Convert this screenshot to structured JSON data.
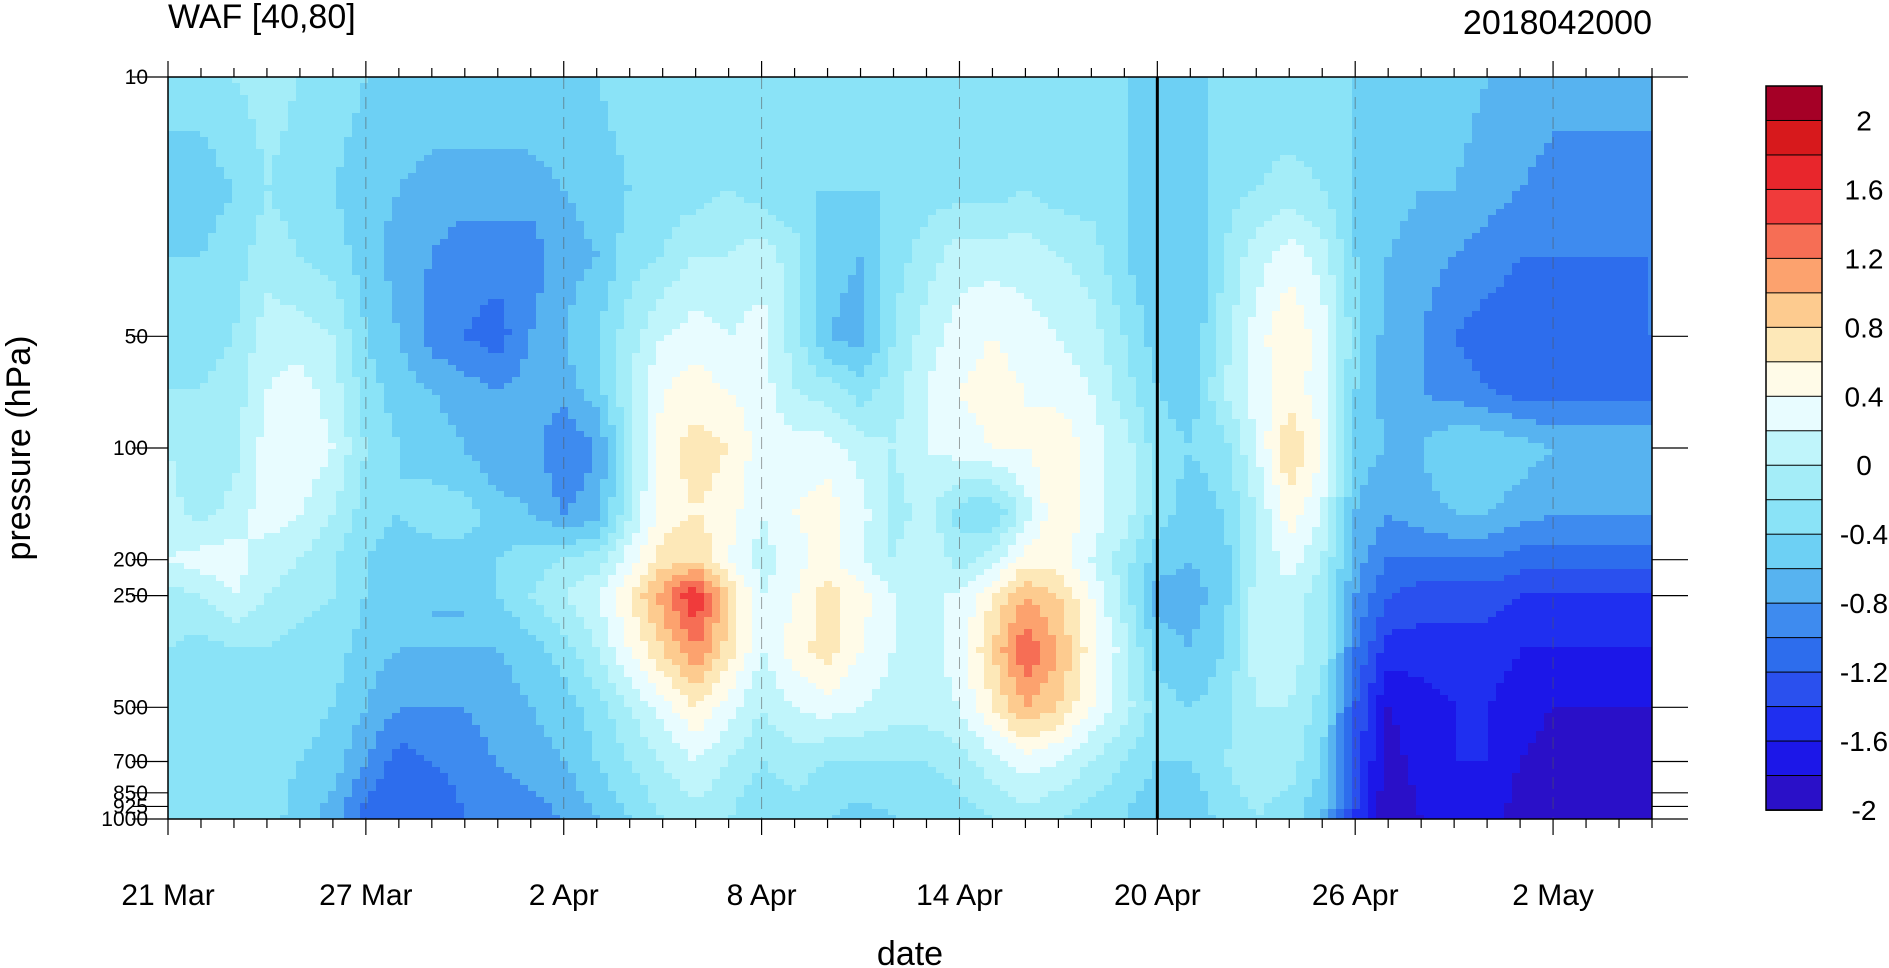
{
  "chart_data": {
    "type": "heatmap",
    "title": "WAF [40,80]",
    "subtitle": "2018042000",
    "xlabel": "date",
    "ylabel": "pressure (hPa)",
    "x_ticks": [
      "21 Mar",
      "27 Mar",
      "2 Apr",
      "8 Apr",
      "14 Apr",
      "20 Apr",
      "26 Apr",
      "2 May"
    ],
    "x": [
      "21 Mar",
      "22 Mar",
      "23 Mar",
      "24 Mar",
      "25 Mar",
      "26 Mar",
      "27 Mar",
      "28 Mar",
      "29 Mar",
      "30 Mar",
      "31 Mar",
      "1 Apr",
      "2 Apr",
      "3 Apr",
      "4 Apr",
      "5 Apr",
      "6 Apr",
      "7 Apr",
      "8 Apr",
      "9 Apr",
      "10 Apr",
      "11 Apr",
      "12 Apr",
      "13 Apr",
      "14 Apr",
      "15 Apr",
      "16 Apr",
      "17 Apr",
      "18 Apr",
      "19 Apr",
      "20 Apr",
      "21 Apr",
      "22 Apr",
      "23 Apr",
      "24 Apr",
      "25 Apr",
      "26 Apr",
      "27 Apr",
      "28 Apr",
      "29 Apr",
      "30 Apr",
      "1 May",
      "2 May",
      "3 May",
      "4 May",
      "5 May"
    ],
    "y_levels": [
      10,
      50,
      100,
      200,
      250,
      500,
      700,
      850,
      925,
      1000
    ],
    "y_tick_labels": [
      "10",
      "50",
      "100",
      "200",
      "250",
      "500",
      "700",
      "850",
      "925",
      "1000"
    ],
    "y_scale": "log",
    "ylim": [
      1000,
      10
    ],
    "vertical_line": "20 Apr",
    "colorbar": {
      "labels": [
        "2",
        "1.6",
        "1.2",
        "0.8",
        "0.4",
        "0",
        "-0.4",
        "-0.8",
        "-1.2",
        "-1.6",
        "-2"
      ],
      "levels": [
        2,
        1.8,
        1.6,
        1.4,
        1.2,
        1.0,
        0.8,
        0.6,
        0.4,
        0.2,
        0,
        -0.2,
        -0.4,
        -0.6,
        -0.8,
        -1.0,
        -1.2,
        -1.4,
        -1.6,
        -1.8,
        -2.0
      ],
      "colors": [
        "#a50026",
        "#d7191c",
        "#e8262c",
        "#f03b3b",
        "#f66e55",
        "#fca26e",
        "#fdcb8f",
        "#fde8b8",
        "#fffbe8",
        "#e8fcff",
        "#c0f5fb",
        "#a4edf8",
        "#8ae3f7",
        "#6dd0f4",
        "#57b3f0",
        "#3e8bef",
        "#2d6ded",
        "#2a50ee",
        "#1f2ff0",
        "#1c17e8",
        "#2a10c8"
      ],
      "position": "right"
    },
    "values": [
      [
        -0.3,
        -0.5,
        -0.4,
        -0.3,
        -0.2,
        -0.0,
        0.1,
        0.2,
        -0.1,
        -0.2,
        -0.3,
        -0.3,
        -0.4
      ],
      [
        -0.3,
        -0.5,
        -0.4,
        -0.3,
        -0.2,
        -0.2,
        -0.1,
        0.3,
        -0.0,
        -0.3,
        -0.4,
        -0.3,
        -0.3
      ],
      [
        -0.2,
        -0.4,
        -0.3,
        -0.2,
        -0.1,
        -0.1,
        0.1,
        0.3,
        0.2,
        -0.2,
        -0.3,
        -0.2,
        -0.3
      ],
      [
        -0.1,
        -0.2,
        -0.1,
        0.1,
        0.2,
        0.3,
        0.3,
        0.1,
        0.0,
        -0.2,
        -0.3,
        -0.3,
        -0.3
      ],
      [
        -0.2,
        -0.3,
        -0.2,
        0.1,
        0.3,
        0.4,
        0.2,
        0.0,
        -0.1,
        -0.3,
        -0.3,
        -0.4,
        -0.5
      ],
      [
        -0.3,
        -0.4,
        -0.3,
        0.0,
        0.1,
        0.2,
        0.0,
        -0.2,
        -0.2,
        -0.3,
        -0.4,
        -0.5,
        -0.7
      ],
      [
        -0.4,
        -0.5,
        -0.5,
        -0.4,
        -0.3,
        -0.2,
        -0.3,
        -0.4,
        -0.4,
        -0.5,
        -0.6,
        -0.8,
        -1.1
      ],
      [
        -0.4,
        -0.6,
        -0.7,
        -0.6,
        -0.5,
        -0.4,
        -0.4,
        -0.5,
        -0.5,
        -0.6,
        -0.8,
        -1.1,
        -1.2
      ],
      [
        -0.4,
        -0.7,
        -0.8,
        -0.9,
        -0.6,
        -0.5,
        -0.3,
        -0.5,
        -0.6,
        -0.6,
        -0.8,
        -1.0,
        -1.2
      ],
      [
        -0.4,
        -0.7,
        -0.9,
        -1.0,
        -0.7,
        -0.6,
        -0.3,
        -0.5,
        -0.6,
        -0.6,
        -0.8,
        -0.9,
        -1.0
      ],
      [
        -0.4,
        -0.7,
        -0.9,
        -1.1,
        -0.8,
        -0.8,
        -0.5,
        -0.4,
        -0.4,
        -0.6,
        -0.7,
        -0.8,
        -0.9
      ],
      [
        -0.4,
        -0.7,
        -0.9,
        -0.8,
        -0.7,
        -0.7,
        -0.6,
        -0.3,
        -0.2,
        -0.5,
        -0.6,
        -0.7,
        -0.9
      ],
      [
        -0.4,
        -0.6,
        -0.7,
        -0.6,
        -0.7,
        -1.0,
        -0.8,
        -0.2,
        -0.0,
        -0.3,
        -0.5,
        -0.6,
        -0.8
      ],
      [
        -0.4,
        -0.5,
        -0.6,
        -0.4,
        -0.5,
        -0.8,
        -0.7,
        -0.1,
        0.2,
        0.0,
        -0.3,
        -0.4,
        -0.6
      ],
      [
        -0.3,
        -0.4,
        -0.3,
        -0.1,
        0.0,
        -0.1,
        0.0,
        0.3,
        0.6,
        0.4,
        0.0,
        -0.2,
        -0.4
      ],
      [
        -0.3,
        -0.3,
        -0.2,
        0.2,
        0.4,
        0.5,
        0.5,
        0.7,
        1.1,
        0.8,
        0.3,
        0.0,
        -0.2
      ],
      [
        -0.3,
        -0.3,
        -0.0,
        0.3,
        0.5,
        0.7,
        0.6,
        0.8,
        1.6,
        1.2,
        0.6,
        0.2,
        -0.1
      ],
      [
        -0.3,
        -0.2,
        -0.0,
        0.2,
        0.4,
        0.6,
        0.5,
        0.4,
        0.8,
        0.7,
        0.3,
        0.0,
        -0.2
      ],
      [
        -0.4,
        -0.3,
        0.1,
        0.3,
        0.3,
        0.3,
        0.2,
        0.1,
        0.2,
        0.2,
        0.0,
        -0.2,
        -0.4
      ],
      [
        -0.4,
        -0.4,
        -0.1,
        -0.1,
        0.0,
        0.3,
        0.4,
        0.3,
        0.4,
        0.5,
        0.2,
        -0.1,
        -0.3
      ],
      [
        -0.4,
        -0.4,
        -0.5,
        -0.6,
        -0.1,
        0.3,
        0.5,
        0.5,
        0.7,
        0.7,
        0.3,
        -0.2,
        -0.4
      ],
      [
        -0.4,
        -0.4,
        -0.6,
        -0.7,
        -0.3,
        0.1,
        0.3,
        0.2,
        0.5,
        0.4,
        0.2,
        -0.2,
        -0.5
      ],
      [
        -0.4,
        -0.4,
        -0.3,
        -0.2,
        -0.1,
        -0.0,
        -0.1,
        0.0,
        0.2,
        0.2,
        0.1,
        -0.2,
        -0.4
      ],
      [
        -0.4,
        -0.3,
        -0.1,
        0.1,
        0.2,
        0.2,
        0.1,
        0.2,
        0.2,
        0.1,
        0.1,
        -0.2,
        -0.4
      ],
      [
        -0.4,
        -0.3,
        0.1,
        0.3,
        0.4,
        0.3,
        -0.3,
        -0.1,
        0.2,
        0.3,
        0.2,
        -0.1,
        -0.3
      ],
      [
        -0.4,
        -0.3,
        0.1,
        0.4,
        0.5,
        0.4,
        -0.4,
        0.1,
        0.6,
        0.8,
        0.6,
        0.1,
        -0.2
      ],
      [
        -0.4,
        -0.2,
        0.1,
        0.3,
        0.4,
        0.4,
        0.1,
        0.5,
        1.0,
        1.4,
        1.0,
        0.3,
        -0.1
      ],
      [
        -0.4,
        -0.3,
        0.0,
        0.2,
        0.3,
        0.6,
        0.6,
        0.5,
        0.8,
        1.0,
        0.8,
        0.2,
        -0.2
      ],
      [
        -0.4,
        -0.3,
        -0.1,
        0.1,
        0.2,
        0.3,
        0.3,
        0.2,
        0.4,
        0.5,
        0.4,
        0.0,
        -0.3
      ],
      [
        -0.4,
        -0.4,
        -0.4,
        -0.2,
        -0.1,
        0.1,
        0.1,
        -0.1,
        -0.1,
        0.1,
        0.1,
        -0.2,
        -0.4
      ],
      [
        -0.4,
        -0.5,
        -0.6,
        -0.5,
        -0.4,
        -0.3,
        -0.3,
        -0.5,
        -0.7,
        -0.5,
        -0.3,
        -0.4,
        -0.6
      ],
      [
        -0.4,
        -0.5,
        -0.6,
        -0.6,
        -0.5,
        -0.4,
        -0.5,
        -0.6,
        -0.7,
        -0.6,
        -0.4,
        -0.4,
        -0.6
      ],
      [
        -0.4,
        -0.3,
        -0.2,
        -0.1,
        0.0,
        -0.3,
        -0.4,
        -0.5,
        -0.5,
        -0.4,
        -0.3,
        -0.2,
        -0.3
      ],
      [
        -0.4,
        -0.2,
        0.1,
        0.3,
        0.3,
        0.2,
        -0.0,
        0.0,
        0.1,
        0.1,
        0.0,
        -0.1,
        -0.2
      ],
      [
        -0.4,
        -0.1,
        0.3,
        0.6,
        0.5,
        0.8,
        0.5,
        0.3,
        0.1,
        0.1,
        0.0,
        -0.1,
        -0.3
      ],
      [
        -0.4,
        -0.2,
        0.1,
        0.3,
        0.3,
        0.4,
        0.2,
        0.0,
        -0.1,
        -0.1,
        -0.3,
        -0.4,
        -0.6
      ],
      [
        -0.4,
        -0.4,
        -0.4,
        -0.3,
        -0.4,
        -0.5,
        -0.6,
        -0.7,
        -0.8,
        -1.0,
        -1.2,
        -1.3,
        -1.4
      ],
      [
        -0.4,
        -0.5,
        -0.6,
        -0.7,
        -0.7,
        -0.6,
        -0.8,
        -1.0,
        -1.2,
        -1.5,
        -1.8,
        -1.9,
        -2.0
      ],
      [
        -0.5,
        -0.6,
        -0.7,
        -0.8,
        -0.8,
        -0.6,
        -0.7,
        -1.0,
        -1.3,
        -1.5,
        -1.7,
        -1.7,
        -1.8
      ],
      [
        -0.5,
        -0.6,
        -0.8,
        -1.0,
        -0.9,
        -0.4,
        -0.6,
        -1.0,
        -1.3,
        -1.5,
        -1.6,
        -1.6,
        -1.7
      ],
      [
        -0.6,
        -0.7,
        -0.9,
        -1.1,
        -1.0,
        -0.4,
        -0.6,
        -1.0,
        -1.3,
        -1.5,
        -1.6,
        -1.6,
        -1.7
      ],
      [
        -0.6,
        -0.8,
        -1.0,
        -1.1,
        -1.1,
        -0.5,
        -0.7,
        -1.1,
        -1.4,
        -1.6,
        -1.7,
        -1.8,
        -1.9
      ],
      [
        -0.7,
        -0.9,
        -1.0,
        -1.1,
        -1.1,
        -0.6,
        -0.8,
        -1.1,
        -1.4,
        -1.6,
        -1.8,
        -1.9,
        -2.0
      ],
      [
        -0.7,
        -0.9,
        -1.0,
        -1.1,
        -1.1,
        -0.6,
        -0.8,
        -1.1,
        -1.4,
        -1.6,
        -1.8,
        -2.0,
        -2.1
      ],
      [
        -0.7,
        -0.9,
        -1.0,
        -1.1,
        -1.1,
        -0.6,
        -0.8,
        -1.1,
        -1.4,
        -1.6,
        -1.8,
        -2.0,
        -2.1
      ],
      [
        -0.7,
        -0.9,
        -1.0,
        -1.0,
        -1.1,
        -0.6,
        -0.8,
        -1.1,
        -1.4,
        -1.6,
        -1.8,
        -1.9,
        -2.0
      ]
    ],
    "values_y_levels": [
      10,
      20,
      30,
      50,
      70,
      100,
      150,
      200,
      250,
      350,
      500,
      700,
      1000
    ]
  }
}
